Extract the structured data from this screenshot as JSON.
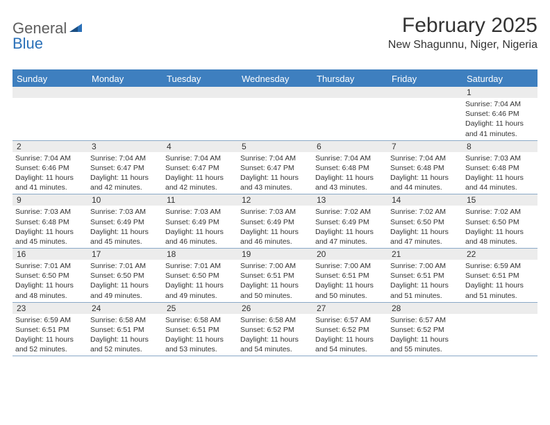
{
  "logo": {
    "text1": "General",
    "text2": "Blue"
  },
  "title": "February 2025",
  "location": "New Shagunnu, Niger, Nigeria",
  "colors": {
    "header_bg": "#3e7fbf",
    "header_text": "#ffffff",
    "daynum_bg": "#ececec",
    "rule": "#3e7fbf",
    "week_divider": "#8aa9c7",
    "text": "#333333",
    "logo_gray": "#5e5e5e",
    "logo_blue": "#2a70b8"
  },
  "weekdays": [
    "Sunday",
    "Monday",
    "Tuesday",
    "Wednesday",
    "Thursday",
    "Friday",
    "Saturday"
  ],
  "weeks": [
    [
      null,
      null,
      null,
      null,
      null,
      null,
      {
        "n": "1",
        "sr": "7:04 AM",
        "ss": "6:46 PM",
        "dl": "11 hours and 41 minutes."
      }
    ],
    [
      {
        "n": "2",
        "sr": "7:04 AM",
        "ss": "6:46 PM",
        "dl": "11 hours and 41 minutes."
      },
      {
        "n": "3",
        "sr": "7:04 AM",
        "ss": "6:47 PM",
        "dl": "11 hours and 42 minutes."
      },
      {
        "n": "4",
        "sr": "7:04 AM",
        "ss": "6:47 PM",
        "dl": "11 hours and 42 minutes."
      },
      {
        "n": "5",
        "sr": "7:04 AM",
        "ss": "6:47 PM",
        "dl": "11 hours and 43 minutes."
      },
      {
        "n": "6",
        "sr": "7:04 AM",
        "ss": "6:48 PM",
        "dl": "11 hours and 43 minutes."
      },
      {
        "n": "7",
        "sr": "7:04 AM",
        "ss": "6:48 PM",
        "dl": "11 hours and 44 minutes."
      },
      {
        "n": "8",
        "sr": "7:03 AM",
        "ss": "6:48 PM",
        "dl": "11 hours and 44 minutes."
      }
    ],
    [
      {
        "n": "9",
        "sr": "7:03 AM",
        "ss": "6:48 PM",
        "dl": "11 hours and 45 minutes."
      },
      {
        "n": "10",
        "sr": "7:03 AM",
        "ss": "6:49 PM",
        "dl": "11 hours and 45 minutes."
      },
      {
        "n": "11",
        "sr": "7:03 AM",
        "ss": "6:49 PM",
        "dl": "11 hours and 46 minutes."
      },
      {
        "n": "12",
        "sr": "7:03 AM",
        "ss": "6:49 PM",
        "dl": "11 hours and 46 minutes."
      },
      {
        "n": "13",
        "sr": "7:02 AM",
        "ss": "6:49 PM",
        "dl": "11 hours and 47 minutes."
      },
      {
        "n": "14",
        "sr": "7:02 AM",
        "ss": "6:50 PM",
        "dl": "11 hours and 47 minutes."
      },
      {
        "n": "15",
        "sr": "7:02 AM",
        "ss": "6:50 PM",
        "dl": "11 hours and 48 minutes."
      }
    ],
    [
      {
        "n": "16",
        "sr": "7:01 AM",
        "ss": "6:50 PM",
        "dl": "11 hours and 48 minutes."
      },
      {
        "n": "17",
        "sr": "7:01 AM",
        "ss": "6:50 PM",
        "dl": "11 hours and 49 minutes."
      },
      {
        "n": "18",
        "sr": "7:01 AM",
        "ss": "6:50 PM",
        "dl": "11 hours and 49 minutes."
      },
      {
        "n": "19",
        "sr": "7:00 AM",
        "ss": "6:51 PM",
        "dl": "11 hours and 50 minutes."
      },
      {
        "n": "20",
        "sr": "7:00 AM",
        "ss": "6:51 PM",
        "dl": "11 hours and 50 minutes."
      },
      {
        "n": "21",
        "sr": "7:00 AM",
        "ss": "6:51 PM",
        "dl": "11 hours and 51 minutes."
      },
      {
        "n": "22",
        "sr": "6:59 AM",
        "ss": "6:51 PM",
        "dl": "11 hours and 51 minutes."
      }
    ],
    [
      {
        "n": "23",
        "sr": "6:59 AM",
        "ss": "6:51 PM",
        "dl": "11 hours and 52 minutes."
      },
      {
        "n": "24",
        "sr": "6:58 AM",
        "ss": "6:51 PM",
        "dl": "11 hours and 52 minutes."
      },
      {
        "n": "25",
        "sr": "6:58 AM",
        "ss": "6:51 PM",
        "dl": "11 hours and 53 minutes."
      },
      {
        "n": "26",
        "sr": "6:58 AM",
        "ss": "6:52 PM",
        "dl": "11 hours and 54 minutes."
      },
      {
        "n": "27",
        "sr": "6:57 AM",
        "ss": "6:52 PM",
        "dl": "11 hours and 54 minutes."
      },
      {
        "n": "28",
        "sr": "6:57 AM",
        "ss": "6:52 PM",
        "dl": "11 hours and 55 minutes."
      },
      null
    ]
  ],
  "labels": {
    "sunrise": "Sunrise:",
    "sunset": "Sunset:",
    "daylight": "Daylight:"
  }
}
